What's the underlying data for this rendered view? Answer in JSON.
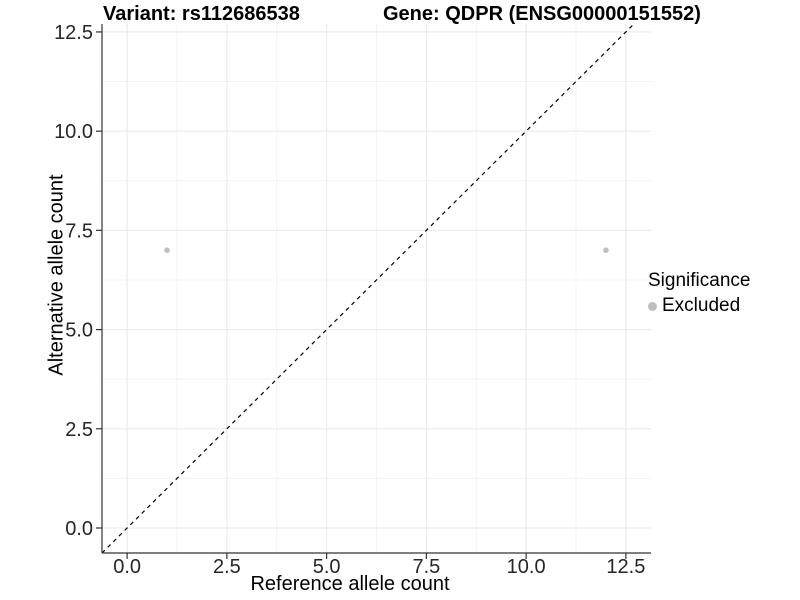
{
  "titles": {
    "variant": "Variant: rs112686538",
    "gene": "Gene: QDPR (ENSG00000151552)"
  },
  "legend": {
    "title": "Significance",
    "items": [
      {
        "label": "Excluded",
        "color": "#bebebe"
      }
    ]
  },
  "colors": {
    "point": "#bebebe",
    "grid_major": "#e8e8e8",
    "grid_minor": "#f3f3f3",
    "axis": "#333333",
    "tick_label": "#262626",
    "reference_line": "#000000"
  },
  "chart_data": {
    "type": "scatter",
    "title": "Variant: rs112686538    Gene: QDPR (ENSG00000151552)",
    "xlabel": "Reference allele count",
    "ylabel": "Alternative allele count",
    "xlim": [
      -0.63,
      13.13
    ],
    "ylim": [
      -0.63,
      12.7
    ],
    "x_ticks": [
      0,
      2.5,
      5,
      7.5,
      10,
      12.5
    ],
    "y_ticks": [
      0,
      2.5,
      5,
      7.5,
      10,
      12.5
    ],
    "x_tick_labels": [
      "0.0",
      "2.5",
      "5.0",
      "7.5",
      "10.0",
      "12.5"
    ],
    "y_tick_labels": [
      "0.0",
      "2.5",
      "5.0",
      "7.5",
      "10.0",
      "12.5"
    ],
    "x_minor": [
      1.25,
      3.75,
      6.25,
      8.75,
      11.25
    ],
    "y_minor": [
      1.25,
      3.75,
      6.25,
      8.75,
      11.25
    ],
    "grid": true,
    "legend_position": "right",
    "series": [
      {
        "name": "Excluded",
        "color": "#bebebe",
        "points": [
          {
            "x": 1,
            "y": 7
          },
          {
            "x": 12,
            "y": 7
          }
        ]
      }
    ],
    "reference_line": {
      "slope": 1,
      "intercept": 0,
      "style": "dashed"
    }
  }
}
